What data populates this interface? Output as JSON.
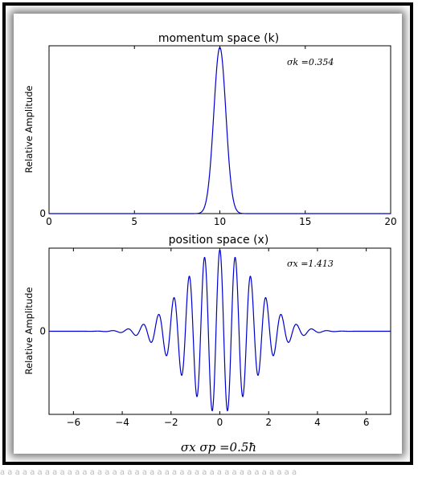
{
  "chart_data": [
    {
      "type": "line",
      "title": "momentum space (k)",
      "xlabel": "",
      "ylabel": "Relative Amplitude",
      "xlim": [
        0,
        20
      ],
      "ylim": [
        0,
        1
      ],
      "xticks": [
        "0",
        "5",
        "10",
        "15",
        "20"
      ],
      "yticks": [
        "0"
      ],
      "annotation": "σk =0.354",
      "series": [
        {
          "color": "#0000cc",
          "center_k": 10,
          "sigma_k": 0.354,
          "peak": 1.0,
          "x": [
            8.6,
            8.9,
            9.2,
            9.5,
            9.7,
            9.85,
            10.0,
            10.15,
            10.3,
            10.5,
            10.8,
            11.1,
            11.4
          ],
          "y": [
            0.0,
            0.06,
            0.24,
            0.53,
            0.82,
            0.95,
            1.0,
            0.95,
            0.82,
            0.53,
            0.24,
            0.06,
            0.0
          ]
        }
      ]
    },
    {
      "type": "line",
      "title": "position space (x)",
      "xlabel": "",
      "ylabel": "Relative Amplitude",
      "xlim": [
        -7,
        7
      ],
      "ylim": [
        -1,
        1
      ],
      "xticks": [
        "−6",
        "−4",
        "−2",
        "0",
        "2",
        "4",
        "6"
      ],
      "yticks": [
        "0"
      ],
      "annotation": "σx =1.413",
      "series": [
        {
          "color": "#0000cc",
          "sigma_x": 1.413,
          "wavenumber_k": 10,
          "envelope_peak": 1.0
        }
      ]
    }
  ],
  "footer": "σx σp =0.5ħ",
  "bottom_strip_text": "a a a a a a a a a a a a a a a a a a a a a a a a a a a a a a a a a a a a a a a a"
}
